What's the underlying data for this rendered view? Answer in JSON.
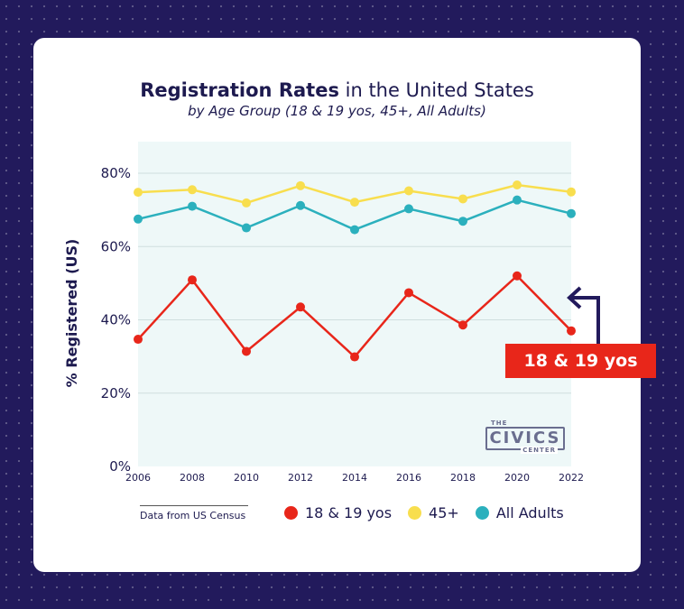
{
  "chart_data": {
    "type": "line",
    "title_bold": "Registration Rates",
    "title_rest": " in the United States",
    "subtitle": "by Age Group (18 & 19 yos, 45+, All Adults)",
    "ylabel": "% Registered (US)",
    "xlabel": "",
    "x": [
      2006,
      2008,
      2010,
      2012,
      2014,
      2016,
      2018,
      2020,
      2022
    ],
    "x_tick_labels": [
      "2006",
      "2008",
      "2010",
      "2012",
      "2014",
      "2016",
      "2018",
      "2020",
      "2022"
    ],
    "y_tick_labels": [
      "80%",
      "60%",
      "40%",
      "20%",
      "0%"
    ],
    "y_ticks": [
      80,
      60,
      40,
      20,
      0
    ],
    "ylim": [
      0,
      85
    ],
    "grid": true,
    "series": [
      {
        "name": "18 & 19 yos",
        "color": "#e8261a",
        "values": [
          34.7,
          50.9,
          31.4,
          43.5,
          29.9,
          47.4,
          38.6,
          52.0,
          37.0
        ]
      },
      {
        "name": "45+",
        "color": "#f8de4e",
        "values": [
          74.8,
          75.5,
          71.9,
          76.6,
          72.1,
          75.2,
          73.0,
          76.8,
          74.9
        ]
      },
      {
        "name": "All Adults",
        "color": "#2bb0bd",
        "values": [
          67.5,
          71.0,
          65.1,
          71.2,
          64.6,
          70.3,
          66.9,
          72.7,
          69.0
        ]
      }
    ],
    "callout": "18 & 19 yos"
  },
  "source_note": "Data from US Census",
  "logo": {
    "top": "THE",
    "main": "CIVICS",
    "bottom": "CENTER"
  },
  "colors": {
    "background": "#221a5c",
    "plot_bg": "#eef8f8",
    "text": "#1d1a4f"
  }
}
